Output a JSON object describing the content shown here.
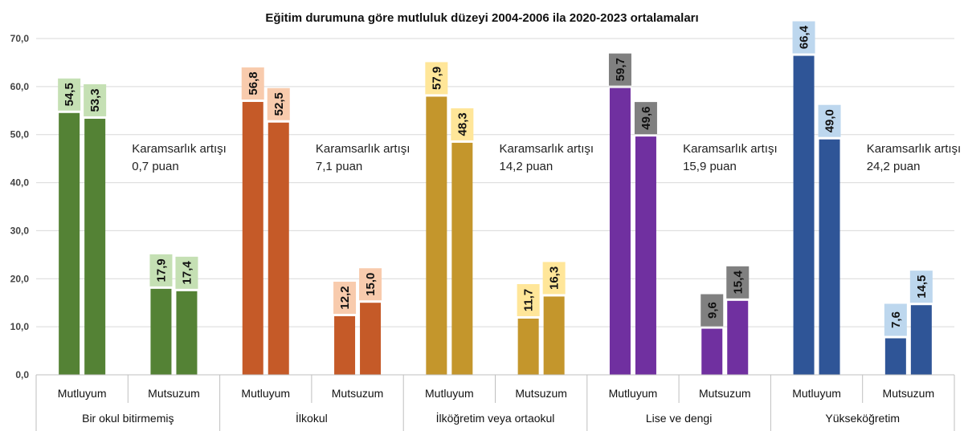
{
  "chart_data": {
    "type": "bar",
    "title": "Eğitim durumuna göre mutluluk düzeyi 2004-2006 ila 2020-2023 ortalamaları",
    "ylim": [
      0,
      70
    ],
    "yticks": [
      "0,0",
      "10,0",
      "20,0",
      "30,0",
      "40,0",
      "50,0",
      "60,0",
      "70,0"
    ],
    "grid": true,
    "groups": [
      {
        "name": "Bir okul bitirmemiş",
        "color": "#548235",
        "label_bg": "#c5e0b4",
        "annotation": [
          "Karamsarlık artışı",
          "0,7 puan"
        ],
        "categories": [
          {
            "name": "Mutluyum",
            "values": [
              54.5,
              53.3
            ],
            "labels": [
              "54,5",
              "53,3"
            ]
          },
          {
            "name": "Mutsuzum",
            "values": [
              17.9,
              17.4
            ],
            "labels": [
              "17,9",
              "17,4"
            ]
          }
        ]
      },
      {
        "name": "İlkokul",
        "color": "#c55a28",
        "label_bg": "#f8cbad",
        "annotation": [
          "Karamsarlık artışı",
          "7,1 puan"
        ],
        "categories": [
          {
            "name": "Mutluyum",
            "values": [
              56.8,
              52.5
            ],
            "labels": [
              "56,8",
              "52,5"
            ]
          },
          {
            "name": "Mutsuzum",
            "values": [
              12.2,
              15.0
            ],
            "labels": [
              "12,2",
              "15,0"
            ]
          }
        ]
      },
      {
        "name": "İlköğretim veya ortaokul",
        "color": "#c4962c",
        "label_bg": "#ffe699",
        "annotation": [
          "Karamsarlık artışı",
          "14,2 puan"
        ],
        "categories": [
          {
            "name": "Mutluyum",
            "values": [
              57.9,
              48.3
            ],
            "labels": [
              "57,9",
              "48,3"
            ]
          },
          {
            "name": "Mutsuzum",
            "values": [
              11.7,
              16.3
            ],
            "labels": [
              "11,7",
              "16,3"
            ]
          }
        ]
      },
      {
        "name": "Lise ve dengi",
        "color": "#7030a0",
        "label_bg": "#808080",
        "annotation": [
          "Karamsarlık artışı",
          "15,9 puan"
        ],
        "categories": [
          {
            "name": "Mutluyum",
            "values": [
              59.7,
              49.6
            ],
            "labels": [
              "59,7",
              "49,6"
            ]
          },
          {
            "name": "Mutsuzum",
            "values": [
              9.6,
              15.4
            ],
            "labels": [
              "9,6",
              "15,4"
            ]
          }
        ]
      },
      {
        "name": "Yükseköğretim",
        "color": "#2f5597",
        "label_bg": "#bdd7ee",
        "annotation": [
          "Karamsarlık artışı",
          "24,2 puan"
        ],
        "categories": [
          {
            "name": "Mutluyum",
            "values": [
              66.4,
              49.0
            ],
            "labels": [
              "66,4",
              "49,0"
            ]
          },
          {
            "name": "Mutsuzum",
            "values": [
              7.6,
              14.5
            ],
            "labels": [
              "7,6",
              "14,5"
            ]
          }
        ]
      }
    ]
  }
}
